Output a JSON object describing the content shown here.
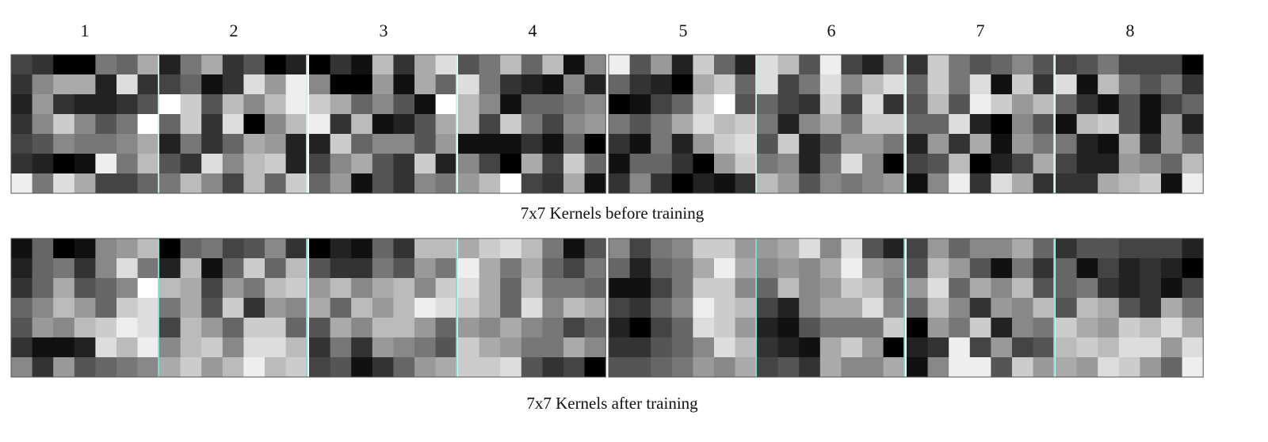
{
  "labels": [
    "1",
    "2",
    "3",
    "4",
    "5",
    "6",
    "7",
    "8"
  ],
  "captions": {
    "before": "7x7 Kernels before training",
    "after": "7x7 Kernels  after training"
  },
  "kernels": {
    "before": [
      [
        [
          4,
          3,
          0,
          0,
          7,
          6,
          10
        ],
        [
          3,
          8,
          10,
          10,
          2,
          13,
          3
        ],
        [
          2,
          9,
          3,
          2,
          2,
          3,
          5
        ],
        [
          3,
          8,
          12,
          8,
          5,
          7,
          15
        ],
        [
          4,
          5,
          8,
          7,
          7,
          8,
          10
        ],
        [
          3,
          2,
          0,
          1,
          14,
          7,
          11
        ],
        [
          14,
          7,
          13,
          10,
          4,
          4,
          6
        ]
      ],
      [
        [
          2,
          7,
          10,
          3,
          5,
          0,
          2
        ],
        [
          4,
          6,
          1,
          3,
          13,
          9,
          14
        ],
        [
          15,
          12,
          5,
          11,
          8,
          11,
          14
        ],
        [
          6,
          12,
          3,
          13,
          0,
          8,
          11
        ],
        [
          2,
          7,
          3,
          6,
          10,
          9,
          2
        ],
        [
          5,
          3,
          13,
          8,
          11,
          12,
          2
        ],
        [
          7,
          11,
          8,
          4,
          11,
          6,
          12
        ]
      ],
      [
        [
          0,
          3,
          1,
          11,
          3,
          10,
          13
        ],
        [
          8,
          0,
          0,
          9,
          1,
          10,
          6
        ],
        [
          12,
          10,
          6,
          8,
          5,
          1,
          15
        ],
        [
          14,
          3,
          11,
          1,
          2,
          5,
          10
        ],
        [
          2,
          12,
          6,
          8,
          8,
          5,
          9
        ],
        [
          4,
          8,
          10,
          5,
          3,
          12,
          2
        ],
        [
          6,
          9,
          1,
          5,
          3,
          8,
          7
        ]
      ],
      [
        [
          5,
          7,
          11,
          6,
          11,
          1,
          8
        ],
        [
          13,
          7,
          3,
          2,
          1,
          8,
          2
        ],
        [
          11,
          8,
          1,
          6,
          6,
          7,
          8
        ],
        [
          11,
          4,
          12,
          7,
          4,
          8,
          9
        ],
        [
          1,
          1,
          1,
          3,
          1,
          6,
          0
        ],
        [
          8,
          4,
          0,
          10,
          4,
          12,
          6
        ],
        [
          9,
          11,
          15,
          4,
          3,
          10,
          1
        ]
      ],
      [
        [
          14,
          5,
          9,
          2,
          12,
          6,
          2
        ],
        [
          6,
          3,
          2,
          0,
          10,
          12,
          6
        ],
        [
          0,
          1,
          4,
          6,
          12,
          15,
          5
        ],
        [
          7,
          5,
          7,
          10,
          13,
          11,
          12
        ],
        [
          3,
          1,
          7,
          2,
          9,
          12,
          13
        ],
        [
          1,
          6,
          6,
          3,
          0,
          9,
          12
        ],
        [
          3,
          8,
          3,
          0,
          2,
          1,
          3
        ]
      ],
      [
        [
          13,
          11,
          5,
          14,
          4,
          2,
          7
        ],
        [
          13,
          4,
          7,
          13,
          8,
          11,
          13
        ],
        [
          6,
          4,
          3,
          12,
          4,
          13,
          3
        ],
        [
          7,
          2,
          8,
          10,
          7,
          12,
          12
        ],
        [
          5,
          12,
          2,
          5,
          9,
          9,
          7
        ],
        [
          7,
          8,
          2,
          7,
          13,
          8,
          0
        ],
        [
          11,
          9,
          5,
          8,
          7,
          8,
          9
        ]
      ],
      [
        [
          3,
          12,
          7,
          5,
          6,
          8,
          5
        ],
        [
          6,
          12,
          7,
          13,
          1,
          12,
          3
        ],
        [
          5,
          11,
          5,
          14,
          12,
          9,
          11
        ],
        [
          6,
          6,
          13,
          2,
          0,
          8,
          5
        ],
        [
          2,
          9,
          3,
          10,
          1,
          9,
          7
        ],
        [
          4,
          5,
          11,
          0,
          2,
          4,
          10
        ],
        [
          1,
          8,
          14,
          3,
          13,
          10,
          3
        ]
      ],
      [
        [
          4,
          5,
          7,
          4,
          4,
          4,
          0
        ],
        [
          13,
          1,
          11,
          7,
          5,
          7,
          3
        ],
        [
          6,
          3,
          1,
          5,
          1,
          4,
          6
        ],
        [
          1,
          11,
          12,
          5,
          1,
          9,
          2
        ],
        [
          7,
          2,
          1,
          10,
          3,
          9,
          6
        ],
        [
          4,
          2,
          2,
          9,
          8,
          6,
          11
        ],
        [
          3,
          3,
          10,
          11,
          12,
          1,
          14
        ]
      ]
    ],
    "after": [
      [
        [
          1,
          6,
          0,
          1,
          8,
          9,
          11
        ],
        [
          2,
          6,
          7,
          3,
          8,
          13,
          7
        ],
        [
          3,
          6,
          10,
          5,
          6,
          8,
          15
        ],
        [
          6,
          8,
          11,
          9,
          6,
          12,
          13
        ],
        [
          5,
          9,
          8,
          11,
          12,
          14,
          13
        ],
        [
          3,
          1,
          1,
          2,
          13,
          11,
          14
        ],
        [
          8,
          3,
          9,
          5,
          6,
          7,
          8
        ]
      ],
      [
        [
          0,
          6,
          7,
          4,
          5,
          8,
          3
        ],
        [
          2,
          11,
          1,
          6,
          12,
          6,
          11
        ],
        [
          11,
          10,
          4,
          9,
          7,
          11,
          12
        ],
        [
          7,
          10,
          5,
          12,
          3,
          9,
          8
        ],
        [
          4,
          11,
          9,
          6,
          12,
          12,
          6
        ],
        [
          8,
          11,
          12,
          8,
          13,
          13,
          11
        ],
        [
          10,
          12,
          9,
          11,
          14,
          11,
          12
        ]
      ],
      [
        [
          0,
          2,
          1,
          6,
          3,
          11,
          11
        ],
        [
          5,
          3,
          3,
          7,
          5,
          9,
          7
        ],
        [
          9,
          11,
          8,
          10,
          11,
          8,
          12
        ],
        [
          10,
          6,
          11,
          9,
          11,
          14,
          13
        ],
        [
          5,
          10,
          8,
          11,
          11,
          9,
          6
        ],
        [
          3,
          7,
          3,
          9,
          8,
          7,
          5
        ],
        [
          4,
          5,
          1,
          3,
          6,
          9,
          10
        ]
      ],
      [
        [
          10,
          12,
          13,
          11,
          7,
          1,
          5
        ],
        [
          14,
          10,
          7,
          10,
          6,
          4,
          7
        ],
        [
          13,
          10,
          6,
          11,
          7,
          7,
          6
        ],
        [
          12,
          10,
          6,
          13,
          8,
          11,
          10
        ],
        [
          9,
          8,
          10,
          8,
          7,
          4,
          6
        ],
        [
          12,
          10,
          9,
          7,
          7,
          10,
          8
        ],
        [
          12,
          12,
          13,
          5,
          3,
          4,
          0
        ]
      ],
      [
        [
          8,
          4,
          7,
          8,
          12,
          12,
          9
        ],
        [
          6,
          2,
          6,
          7,
          10,
          14,
          10
        ],
        [
          1,
          1,
          4,
          7,
          12,
          12,
          8
        ],
        [
          4,
          3,
          6,
          8,
          14,
          12,
          11
        ],
        [
          2,
          0,
          4,
          6,
          13,
          12,
          9
        ],
        [
          3,
          3,
          5,
          6,
          8,
          13,
          11
        ],
        [
          5,
          5,
          6,
          7,
          9,
          8,
          10
        ]
      ],
      [
        [
          9,
          10,
          13,
          8,
          13,
          5,
          2
        ],
        [
          8,
          9,
          8,
          10,
          14,
          9,
          8
        ],
        [
          6,
          11,
          8,
          9,
          12,
          11,
          7
        ],
        [
          4,
          2,
          8,
          10,
          10,
          13,
          8
        ],
        [
          2,
          1,
          5,
          7,
          7,
          7,
          12
        ],
        [
          3,
          2,
          1,
          10,
          12,
          9,
          0
        ],
        [
          4,
          5,
          3,
          10,
          8,
          8,
          10
        ]
      ],
      [
        [
          4,
          9,
          6,
          8,
          8,
          10,
          6
        ],
        [
          5,
          11,
          9,
          5,
          1,
          7,
          3
        ],
        [
          9,
          13,
          6,
          10,
          8,
          11,
          5
        ],
        [
          6,
          11,
          8,
          3,
          9,
          8,
          11
        ],
        [
          0,
          9,
          7,
          12,
          2,
          8,
          7
        ],
        [
          2,
          3,
          14,
          4,
          9,
          4,
          5
        ],
        [
          1,
          8,
          14,
          14,
          5,
          12,
          9
        ]
      ],
      [
        [
          3,
          5,
          5,
          4,
          4,
          4,
          2
        ],
        [
          6,
          1,
          4,
          2,
          3,
          2,
          0
        ],
        [
          6,
          7,
          3,
          2,
          3,
          1,
          4
        ],
        [
          5,
          11,
          10,
          5,
          3,
          10,
          7
        ],
        [
          12,
          10,
          9,
          12,
          11,
          13,
          10
        ],
        [
          11,
          12,
          11,
          13,
          13,
          9,
          13
        ],
        [
          10,
          9,
          13,
          12,
          9,
          6,
          14
        ]
      ]
    ]
  }
}
